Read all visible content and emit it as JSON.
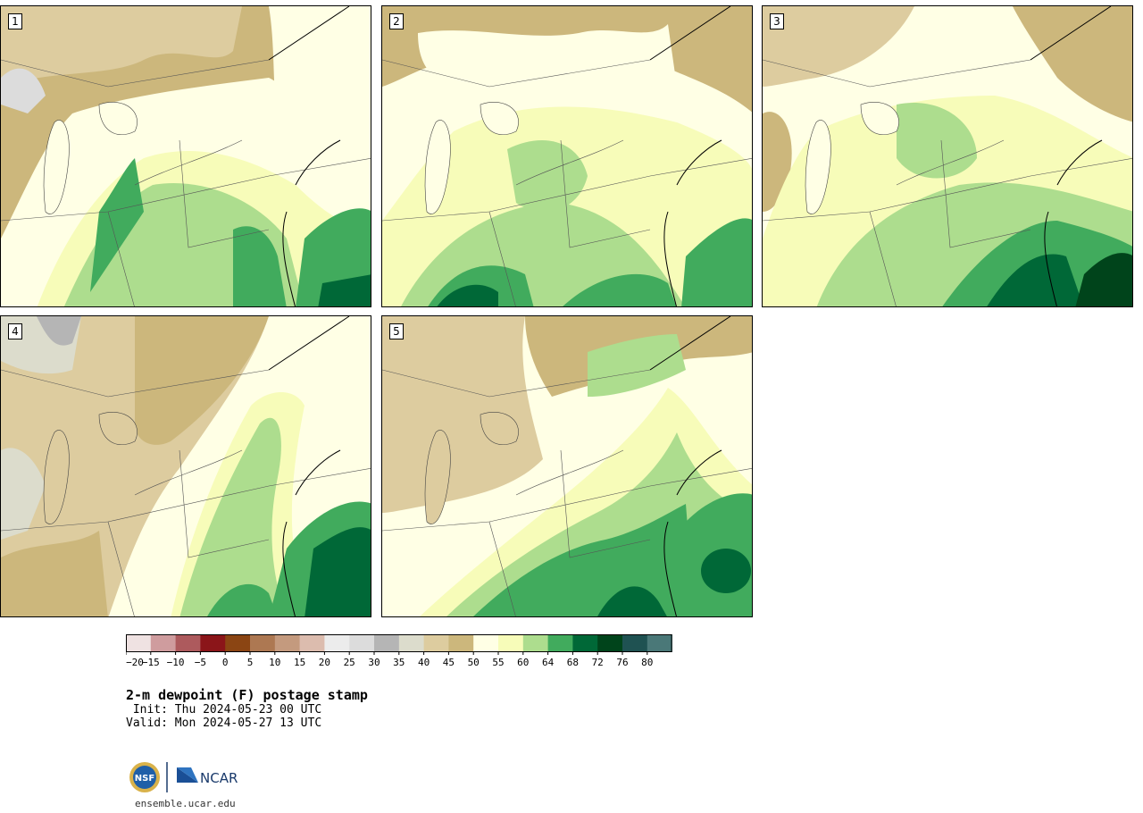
{
  "panels": [
    {
      "label": "1"
    },
    {
      "label": "2"
    },
    {
      "label": "3"
    },
    {
      "label": "4"
    },
    {
      "label": "5"
    }
  ],
  "colorbar": {
    "ticks": [
      "−20",
      "−15",
      "−10",
      "−5",
      "0",
      "5",
      "10",
      "15",
      "20",
      "25",
      "30",
      "35",
      "40",
      "45",
      "50",
      "55",
      "60",
      "64",
      "68",
      "72",
      "76",
      "80"
    ],
    "colors": [
      "#efe2e2",
      "#cf9c9e",
      "#ad5a5d",
      "#8b1519",
      "#8b4513",
      "#ad7852",
      "#c49a7e",
      "#dcbcae",
      "#ececec",
      "#dcdcdc",
      "#b5b5b5",
      "#dcdccc",
      "#ddcc9f",
      "#ccb77c",
      "#ffffe5",
      "#f7fcb9",
      "#addd8e",
      "#41ab5d",
      "#006837",
      "#00441b",
      "#1f5252",
      "#4a7878"
    ]
  },
  "title": "2-m dewpoint (F) postage stamp",
  "init": " Init: Thu 2024-05-23 00 UTC",
  "valid": "Valid: Mon 2024-05-27 13 UTC",
  "logos": {
    "nsf": "NSF",
    "ncar": "NCAR"
  },
  "site": "ensemble.ucar.edu"
}
